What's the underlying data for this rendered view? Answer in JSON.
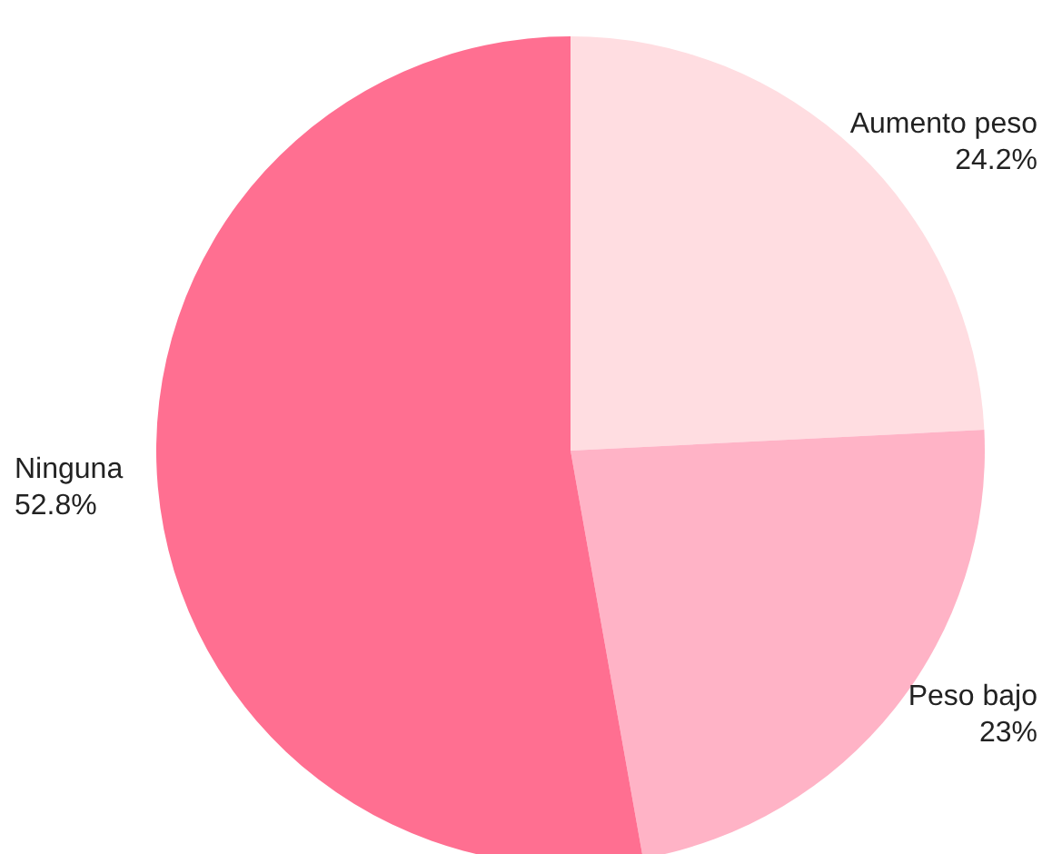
{
  "chart_data": {
    "type": "pie",
    "categories": [
      "Aumento peso",
      "Peso bajo",
      "Ninguna"
    ],
    "values": [
      24.2,
      23,
      52.8
    ],
    "colors": [
      "#ffdde1",
      "#ffb3c6",
      "#ff6f91"
    ],
    "value_labels": [
      "24.2%",
      "23%",
      "52.8%"
    ]
  }
}
